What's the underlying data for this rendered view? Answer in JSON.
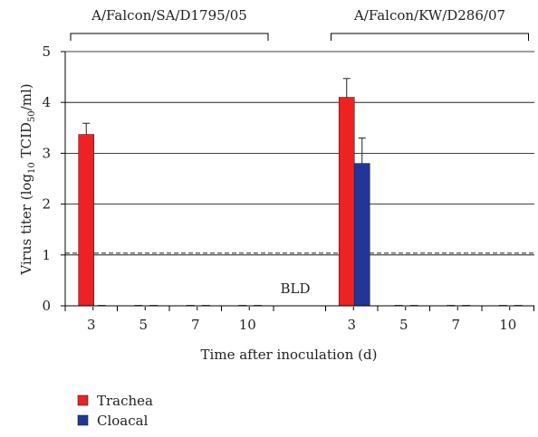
{
  "chart_data": {
    "type": "bar",
    "ylabel_parts": [
      "Virus titer (log",
      "10",
      " TCID",
      "50",
      "/ml)"
    ],
    "xlabel": "Time after inoculation (d)",
    "ylim": [
      0,
      5
    ],
    "yticks": [
      "0",
      "1",
      "2",
      "3",
      "4",
      "5"
    ],
    "grid": true,
    "threshold": 1.0,
    "threshold_label": "BLD",
    "groups": [
      {
        "name": "A/Falcon/SA/D1795/05",
        "categories": [
          "3",
          "5",
          "7",
          "10"
        ]
      },
      {
        "name": "A/Falcon/KW/D286/07",
        "categories": [
          "3",
          "5",
          "7",
          "10"
        ]
      }
    ],
    "series": [
      {
        "name": "Trachea",
        "color": "#ee2222",
        "values": [
          [
            3.37,
            0,
            0,
            0
          ],
          [
            4.1,
            0,
            0,
            0
          ]
        ],
        "errors": [
          [
            0.22,
            0,
            0,
            0
          ],
          [
            0.37,
            0,
            0,
            0
          ]
        ]
      },
      {
        "name": "Cloacal",
        "color": "#22369a",
        "values": [
          [
            0,
            0,
            0,
            0
          ],
          [
            2.8,
            0,
            0,
            0
          ]
        ],
        "errors": [
          [
            0,
            0,
            0,
            0
          ],
          [
            0.5,
            0,
            0,
            0
          ]
        ]
      }
    ],
    "legend_position": "bottom-left"
  }
}
